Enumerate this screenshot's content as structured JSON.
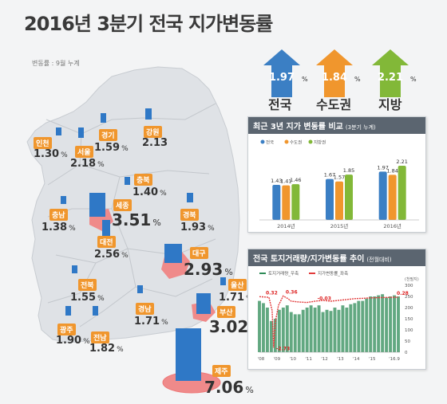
{
  "title": "2016년 3분기 전국 지가변동률",
  "note": "변동률 : 9월 누계",
  "summary": [
    {
      "value": "1.97",
      "pct": "%",
      "label": "전국",
      "color": "#3b7fc4"
    },
    {
      "value": "1.84",
      "pct": "%",
      "label": "수도권",
      "color": "#f0962d"
    },
    {
      "value": "2.21",
      "pct": "%",
      "label": "지방",
      "color": "#82b838"
    }
  ],
  "regions": [
    {
      "name": "인천",
      "value": "1.30",
      "pct": "%"
    },
    {
      "name": "서울",
      "value": "2.18",
      "pct": "%"
    },
    {
      "name": "경기",
      "value": "1.59",
      "pct": "%"
    },
    {
      "name": "강원",
      "value": "2.13",
      "pct": "%"
    },
    {
      "name": "충북",
      "value": "1.40",
      "pct": "%"
    },
    {
      "name": "세종",
      "value": "3.51",
      "pct": "%"
    },
    {
      "name": "충남",
      "value": "1.38",
      "pct": "%"
    },
    {
      "name": "대전",
      "value": "2.56",
      "pct": "%"
    },
    {
      "name": "경북",
      "value": "1.93",
      "pct": "%"
    },
    {
      "name": "대구",
      "value": "2.93",
      "pct": "%"
    },
    {
      "name": "전북",
      "value": "1.55",
      "pct": "%"
    },
    {
      "name": "울산",
      "value": "1.71",
      "pct": "%"
    },
    {
      "name": "경남",
      "value": "1.71",
      "pct": "%"
    },
    {
      "name": "부산",
      "value": "3.02",
      "pct": "%"
    },
    {
      "name": "광주",
      "value": "1.90",
      "pct": "%"
    },
    {
      "name": "전남",
      "value": "1.82",
      "pct": "%"
    },
    {
      "name": "제주",
      "value": "7.06",
      "pct": "%"
    }
  ],
  "chart1_title": "최근 3년 지가 변동률 비교",
  "chart1_sub": "(3분기 누계)",
  "chart2_title": "전국 토지거래량/지가변동률 추이",
  "chart2_sub": "(전월대비)",
  "chart_data": [
    {
      "type": "bar",
      "title": "최근 3년 지가 변동률 비교 (3분기 누계)",
      "categories": [
        "2014년",
        "2015년",
        "2016년"
      ],
      "legend": [
        "전국",
        "수도권",
        "지방권"
      ],
      "series": [
        {
          "name": "전국",
          "values": [
            1.43,
            1.67,
            1.97
          ],
          "color": "#3b7fc4"
        },
        {
          "name": "수도권",
          "values": [
            1.41,
            1.57,
            1.84
          ],
          "color": "#f0962d"
        },
        {
          "name": "지방권",
          "values": [
            1.46,
            1.85,
            2.21
          ],
          "color": "#82b838"
        }
      ],
      "ylim": [
        0,
        2.6
      ],
      "legend_position": "top-left"
    },
    {
      "type": "line",
      "title": "전국 토지거래량/지가변동률 추이 (전월대비)",
      "legend": [
        "토지거래량_우축",
        "지가변동률_좌축"
      ],
      "x_tick_labels": [
        "'08",
        "'09",
        "'10",
        "'11",
        "'12",
        "'13",
        "'14",
        "'15",
        "'16.9"
      ],
      "right_axis_label": "(천필지)",
      "right_ticks": [
        0,
        50,
        100,
        150,
        200,
        250,
        300
      ],
      "annotations": [
        "0.32",
        "0.36",
        "-0.03",
        "0.28",
        "-2.73"
      ],
      "series": [
        {
          "name": "토지거래량_우축",
          "type": "bar",
          "color": "#2e8b57",
          "x": [
            2008.0,
            2008.25,
            2008.5,
            2008.75,
            2009.0,
            2009.25,
            2009.5,
            2009.75,
            2010.0,
            2010.25,
            2010.5,
            2010.75,
            2011.0,
            2011.25,
            2011.5,
            2011.75,
            2012.0,
            2012.25,
            2012.5,
            2012.75,
            2013.0,
            2013.25,
            2013.5,
            2013.75,
            2014.0,
            2014.25,
            2014.5,
            2014.75,
            2015.0,
            2015.25,
            2015.5,
            2015.75,
            2016.0,
            2016.25,
            2016.5,
            2016.75
          ],
          "values": [
            230,
            220,
            200,
            140,
            150,
            190,
            200,
            210,
            180,
            170,
            170,
            190,
            200,
            210,
            200,
            210,
            180,
            190,
            185,
            200,
            190,
            210,
            200,
            215,
            220,
            230,
            230,
            240,
            250,
            250,
            255,
            260,
            245,
            250,
            255,
            250
          ]
        },
        {
          "name": "지가변동률_좌축",
          "type": "line",
          "color": "#e23b3b",
          "x": [
            2008.0,
            2008.3,
            2008.6,
            2008.8,
            2008.9,
            2009.0,
            2009.2,
            2009.5,
            2009.8,
            2010.0,
            2010.5,
            2011.0,
            2011.5,
            2012.0,
            2012.5,
            2013.0,
            2013.5,
            2014.0,
            2014.5,
            2015.0,
            2015.5,
            2016.0,
            2016.5,
            2016.75
          ],
          "values": [
            0.32,
            0.3,
            0.28,
            -0.5,
            -2.73,
            -1.2,
            -0.2,
            0.36,
            0.2,
            0.05,
            0.0,
            -0.03,
            0.05,
            0.1,
            0.05,
            0.1,
            0.15,
            0.2,
            0.22,
            0.25,
            0.26,
            0.27,
            0.28,
            0.28
          ]
        }
      ]
    }
  ]
}
